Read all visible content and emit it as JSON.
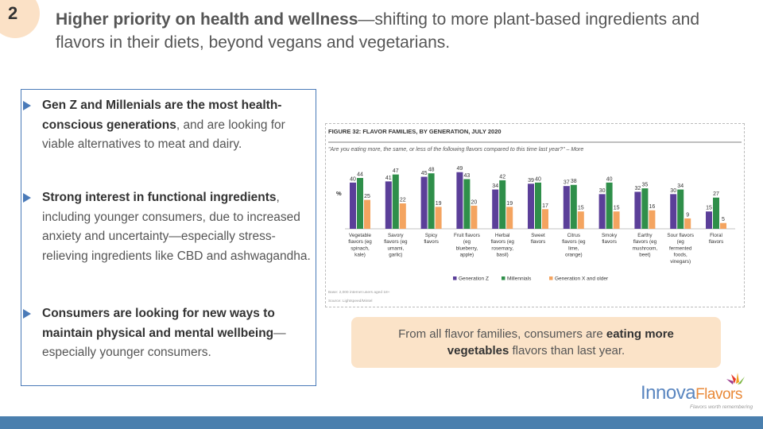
{
  "slide": {
    "number": "2",
    "headline_bold": "Higher priority on health and wellness",
    "headline_rest": "—shifting to more plant-based ingredients and flavors in their diets, beyond vegans and vegetarians."
  },
  "bullets": [
    {
      "bold": "Gen Z and Millenials are the most health-conscious generations",
      "rest": ", and are looking for viable alternatives to meat and dairy."
    },
    {
      "bold": "Strong interest in functional ingredients",
      "rest": ", including younger consumers, due to increased anxiety and uncertainty—especially stress-relieving ingredients like CBD and ashwagandha."
    },
    {
      "bold": "Consumers are looking for new ways to maintain physical and mental wellbeing",
      "rest": "—especially younger consumers."
    }
  ],
  "callout": {
    "pre": "From all flavor families, consumers are ",
    "bold": "eating more vegetables",
    "post": " flavors than last year."
  },
  "logo": {
    "brand_main": "Innova",
    "brand_accent": "Flavors",
    "tagline": "Flavors worth remembering"
  },
  "colors": {
    "gen_z": "#5b3f99",
    "millennials": "#2f8f4a",
    "gen_x": "#f4a460",
    "accent_blue": "#4a7ab8",
    "callout_bg": "#fbe3c8"
  },
  "chart_data": {
    "type": "bar",
    "title": "FIGURE 32: FLAVOR FAMILIES, BY GENERATION, JULY 2020",
    "subtitle": "\"Are you eating more, the same, or less of the following flavors compared to this time last year?\" – More",
    "ylabel": "%",
    "ylim": [
      0,
      55
    ],
    "categories": [
      [
        "Vegetable",
        "flavors (eg",
        "spinach,",
        "kale)"
      ],
      [
        "Savory",
        "flavors (eg",
        "umami,",
        "garlic)"
      ],
      [
        "Spicy",
        "flavors"
      ],
      [
        "Fruit flavors",
        "(eg",
        "blueberry,",
        "apple)"
      ],
      [
        "Herbal",
        "flavors (eg",
        "rosemary,",
        "basil)"
      ],
      [
        "Sweet",
        "flavors"
      ],
      [
        "Citrus",
        "flavors (eg",
        "lime,",
        "orange)"
      ],
      [
        "Smoky",
        "flavors"
      ],
      [
        "Earthy",
        "flavors (eg",
        "mushroom,",
        "beet)"
      ],
      [
        "Sour flavors",
        "(eg",
        "fermented",
        "foods,",
        "vinegars)"
      ],
      [
        "Floral",
        "flavors"
      ]
    ],
    "series": [
      {
        "name": "Generation Z",
        "values": [
          40,
          41,
          45,
          49,
          34,
          39,
          37,
          30,
          32,
          30,
          15
        ]
      },
      {
        "name": "Millennials",
        "values": [
          44,
          47,
          48,
          43,
          42,
          40,
          38,
          40,
          35,
          34,
          27
        ]
      },
      {
        "name": "Generation X and older",
        "values": [
          25,
          22,
          19,
          20,
          19,
          17,
          15,
          15,
          16,
          9,
          5
        ]
      }
    ],
    "legend_position": "bottom",
    "grid": false,
    "base_note": "Base: 2,000 internet users aged 18+",
    "source_note": "Source: Lightspeed/Mintel"
  }
}
